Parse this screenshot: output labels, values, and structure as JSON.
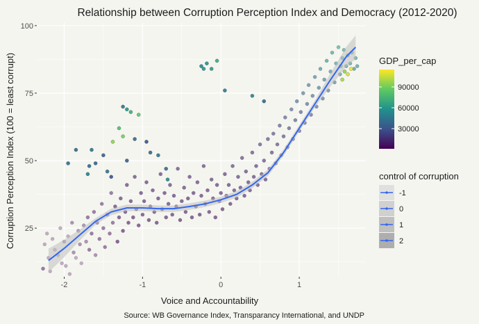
{
  "chart_data": {
    "type": "scatter",
    "title": "Relationship between Corruption Perception Index and Democracy (2012-2020)",
    "xlabel": "Voice and Accountability",
    "ylabel": "Corruption Perception Index (100 = least corrupt)",
    "caption": "Source: WB Governance Index, Transparancy International, and UNDP",
    "xlim": [
      -2.35,
      1.85
    ],
    "ylim": [
      7,
      101
    ],
    "x_ticks": [
      -2,
      -1,
      0,
      1
    ],
    "x_tick_labels": [
      "-2",
      "-1",
      "0",
      "1"
    ],
    "y_ticks": [
      25,
      50,
      75,
      100
    ],
    "y_tick_labels": [
      "25",
      "50",
      "75",
      "100"
    ],
    "grid": true,
    "smooth_line": {
      "color": "#3366ee",
      "x": [
        -2.2,
        -2.0,
        -1.8,
        -1.6,
        -1.4,
        -1.2,
        -1.0,
        -0.8,
        -0.6,
        -0.4,
        -0.2,
        0.0,
        0.2,
        0.4,
        0.6,
        0.8,
        1.0,
        1.2,
        1.4,
        1.6,
        1.72
      ],
      "y": [
        13,
        17.5,
        22.5,
        27.5,
        31,
        32.5,
        32.5,
        32.2,
        32.2,
        33,
        34,
        35.5,
        37.5,
        41,
        45.5,
        53,
        62,
        71,
        80,
        88.5,
        92
      ]
    },
    "legend_gdp": {
      "title": "GDP_per_cap",
      "ticks": [
        30000,
        60000,
        90000
      ],
      "tick_labels": [
        "30000",
        "60000",
        "90000"
      ],
      "min": 1000,
      "max": 115000,
      "colors": [
        "#440154",
        "#3b528b",
        "#21918c",
        "#5ec962",
        "#fde725"
      ]
    },
    "legend_control": {
      "title": "control of corruption",
      "items": [
        "-1",
        "0",
        "1",
        "2"
      ],
      "shades": [
        "#e0e0e0",
        "#d0d0d0",
        "#bfbfbf",
        "#aeaeae"
      ],
      "line_color": "#3366ee"
    },
    "points": [
      [
        -2.27,
        10,
        0.3,
        0.5
      ],
      [
        -2.25,
        19,
        0.4,
        0.3
      ],
      [
        -2.22,
        23,
        0.5,
        0.3
      ],
      [
        -2.2,
        14,
        0.6,
        0.3
      ],
      [
        -2.18,
        9,
        0.8,
        0.3
      ],
      [
        -2.15,
        21,
        1,
        0.3
      ],
      [
        -2.12,
        17,
        1.2,
        0.3
      ],
      [
        -2.08,
        15,
        1.3,
        0.3
      ],
      [
        -2.05,
        25,
        1.5,
        0.3
      ],
      [
        -2.03,
        12,
        1.1,
        0.3
      ],
      [
        -2.0,
        20,
        1.8,
        0.4
      ],
      [
        -1.98,
        11,
        2,
        0.3
      ],
      [
        -1.95,
        22,
        2.5,
        0.3
      ],
      [
        -1.93,
        8,
        1.7,
        0.3
      ],
      [
        -1.9,
        27,
        2.8,
        0.4
      ],
      [
        -1.88,
        16,
        2.1,
        0.4
      ],
      [
        -1.85,
        14,
        2.4,
        0.3
      ],
      [
        -1.82,
        24,
        3,
        0.4
      ],
      [
        -1.8,
        19,
        3.5,
        0.4
      ],
      [
        -1.78,
        12,
        2.8,
        0.3
      ],
      [
        -1.75,
        26,
        3.8,
        0.4
      ],
      [
        -1.72,
        20,
        3.2,
        0.4
      ],
      [
        -1.7,
        29,
        4,
        0.5
      ],
      [
        -1.68,
        17,
        3.3,
        0.5
      ],
      [
        -1.65,
        23,
        4.2,
        0.5
      ],
      [
        -1.62,
        31,
        4.8,
        0.5
      ],
      [
        -1.6,
        15,
        2.9,
        0.4
      ],
      [
        -1.58,
        27,
        5,
        0.5
      ],
      [
        -1.55,
        21,
        4.4,
        0.5
      ],
      [
        -1.52,
        34,
        6,
        0.5
      ],
      [
        -1.5,
        25,
        5.5,
        0.5
      ],
      [
        -1.48,
        18,
        3.8,
        0.5
      ],
      [
        -1.45,
        30,
        6,
        0.5
      ],
      [
        -1.42,
        23,
        4.9,
        0.5
      ],
      [
        -1.4,
        38,
        7,
        0.5
      ],
      [
        -1.38,
        27,
        5.5,
        0.5
      ],
      [
        -1.35,
        33,
        6.6,
        0.6
      ],
      [
        -1.32,
        20,
        4.2,
        0.6
      ],
      [
        -1.3,
        29,
        6.1,
        0.6
      ],
      [
        -1.28,
        36,
        8,
        0.6
      ],
      [
        -1.25,
        24,
        4.9,
        0.6
      ],
      [
        -1.22,
        31,
        6.4,
        0.6
      ],
      [
        -1.2,
        41,
        9,
        0.6
      ],
      [
        -1.18,
        27,
        6,
        0.6
      ],
      [
        -1.15,
        35,
        7,
        0.6
      ],
      [
        -1.12,
        29,
        5.5,
        0.6
      ],
      [
        -1.1,
        44,
        10,
        0.6
      ],
      [
        -1.08,
        32,
        7.2,
        0.6
      ],
      [
        -1.05,
        26,
        5.2,
        0.6
      ],
      [
        -1.02,
        38,
        8.4,
        0.6
      ],
      [
        -1.0,
        30,
        6.3,
        0.6
      ],
      [
        -0.98,
        35,
        7.1,
        0.6
      ],
      [
        -0.95,
        42,
        9.5,
        0.6
      ],
      [
        -0.92,
        28,
        5.9,
        0.6
      ],
      [
        -0.9,
        33,
        6.9,
        0.6
      ],
      [
        -0.87,
        39,
        8.8,
        0.6
      ],
      [
        -0.85,
        31,
        6.5,
        0.6
      ],
      [
        -0.82,
        27,
        5.6,
        0.6
      ],
      [
        -0.8,
        36,
        7.7,
        0.6
      ],
      [
        -0.77,
        45,
        11,
        0.6
      ],
      [
        -0.75,
        32,
        6.6,
        0.6
      ],
      [
        -0.72,
        38,
        7.9,
        0.6
      ],
      [
        -0.7,
        29,
        5.8,
        0.6
      ],
      [
        -0.67,
        34,
        7,
        0.6
      ],
      [
        -0.65,
        41,
        9.3,
        0.6
      ],
      [
        -0.62,
        30,
        6.2,
        0.6
      ],
      [
        -0.6,
        37,
        8.5,
        0.6
      ],
      [
        -0.57,
        33,
        6.8,
        0.6
      ],
      [
        -0.55,
        47,
        12,
        0.6
      ],
      [
        -0.52,
        28,
        5.7,
        0.6
      ],
      [
        -0.5,
        35,
        7.4,
        0.6
      ],
      [
        -0.47,
        40,
        9.1,
        0.6
      ],
      [
        -0.45,
        31,
        6.4,
        0.6
      ],
      [
        -0.42,
        36,
        7.6,
        0.6
      ],
      [
        -0.4,
        44,
        10.5,
        0.6
      ],
      [
        -0.37,
        29,
        5.9,
        0.6
      ],
      [
        -0.35,
        38,
        8.2,
        0.6
      ],
      [
        -0.32,
        33,
        6.9,
        0.6
      ],
      [
        -0.3,
        42,
        9.7,
        0.6
      ],
      [
        -0.27,
        30,
        6.1,
        0.6
      ],
      [
        -0.25,
        37,
        8,
        0.6
      ],
      [
        -0.22,
        48,
        12.5,
        0.6
      ],
      [
        -0.2,
        34,
        7.2,
        0.6
      ],
      [
        -0.17,
        39,
        8.6,
        0.6
      ],
      [
        -0.15,
        31,
        6.5,
        0.6
      ],
      [
        -0.12,
        43,
        10,
        0.6
      ],
      [
        -0.1,
        36,
        7.7,
        0.6
      ],
      [
        -0.07,
        29,
        5.9,
        0.6
      ],
      [
        -0.05,
        41,
        9.2,
        0.6
      ],
      [
        -0.02,
        35,
        7.5,
        0.6
      ],
      [
        0.0,
        38,
        8.3,
        0.6
      ],
      [
        0.02,
        32,
        6.7,
        0.6
      ],
      [
        0.05,
        45,
        11.2,
        0.6
      ],
      [
        0.07,
        37,
        8,
        0.6
      ],
      [
        0.1,
        41,
        9.4,
        0.6
      ],
      [
        0.12,
        34,
        7.3,
        0.6
      ],
      [
        0.15,
        48,
        13,
        0.6
      ],
      [
        0.17,
        39,
        8.8,
        0.6
      ],
      [
        0.2,
        36,
        7.8,
        0.6
      ],
      [
        0.22,
        44,
        10.7,
        0.6
      ],
      [
        0.25,
        40,
        9.1,
        0.6
      ],
      [
        0.27,
        51,
        14,
        0.6
      ],
      [
        0.3,
        37,
        8.2,
        0.6
      ],
      [
        0.32,
        46,
        11.5,
        0.6
      ],
      [
        0.35,
        42,
        10,
        0.6
      ],
      [
        0.37,
        39,
        8.9,
        0.6
      ],
      [
        0.4,
        53,
        15,
        0.6
      ],
      [
        0.42,
        44,
        10.8,
        0.6
      ],
      [
        0.45,
        48,
        12.6,
        0.6
      ],
      [
        0.47,
        41,
        9.7,
        0.6
      ],
      [
        0.5,
        56,
        17,
        0.6
      ],
      [
        0.52,
        45,
        11.3,
        0.6
      ],
      [
        0.55,
        50,
        13.5,
        0.6
      ],
      [
        0.57,
        43,
        10.4,
        0.6
      ],
      [
        0.6,
        58,
        19,
        0.6
      ],
      [
        0.62,
        47,
        12,
        0.6
      ],
      [
        0.65,
        53,
        15,
        0.6
      ],
      [
        0.67,
        60,
        20,
        0.6
      ],
      [
        0.7,
        49,
        13,
        0.6
      ],
      [
        0.72,
        56,
        17,
        0.6
      ],
      [
        0.75,
        63,
        23,
        0.6
      ],
      [
        0.77,
        52,
        14.5,
        0.6
      ],
      [
        0.8,
        59,
        19.5,
        0.6
      ],
      [
        0.82,
        66,
        26,
        0.6
      ],
      [
        0.85,
        55,
        16.5,
        0.6
      ],
      [
        0.87,
        62,
        22,
        0.6
      ],
      [
        0.9,
        69,
        30,
        0.6
      ],
      [
        0.92,
        58,
        18.8,
        0.6
      ],
      [
        0.95,
        65,
        25,
        0.6
      ],
      [
        0.97,
        72,
        34,
        0.6
      ],
      [
        1.0,
        61,
        21,
        0.6
      ],
      [
        1.02,
        68,
        28,
        0.6
      ],
      [
        1.05,
        75,
        38,
        0.6
      ],
      [
        1.07,
        64,
        24,
        0.6
      ],
      [
        1.1,
        71,
        32,
        0.6
      ],
      [
        1.12,
        78,
        42,
        0.6
      ],
      [
        1.15,
        67,
        27,
        0.6
      ],
      [
        1.17,
        74,
        36,
        0.6
      ],
      [
        1.2,
        81,
        46,
        0.6
      ],
      [
        1.22,
        70,
        31,
        0.6
      ],
      [
        1.25,
        77,
        41,
        0.6
      ],
      [
        1.27,
        84,
        50,
        0.6
      ],
      [
        1.3,
        73,
        35,
        0.6
      ],
      [
        1.32,
        80,
        45,
        0.6
      ],
      [
        1.35,
        87,
        55,
        0.6
      ],
      [
        1.37,
        76,
        39,
        0.6
      ],
      [
        1.4,
        83,
        49,
        0.6
      ],
      [
        1.42,
        90,
        60,
        0.6
      ],
      [
        1.45,
        79,
        44,
        0.6
      ],
      [
        1.47,
        86,
        54,
        0.6
      ],
      [
        1.5,
        92,
        65,
        0.6
      ],
      [
        1.52,
        82,
        48,
        0.6
      ],
      [
        1.55,
        88,
        58,
        0.6
      ],
      [
        1.57,
        91,
        62,
        0.6
      ],
      [
        1.6,
        85,
        52,
        0.6
      ],
      [
        1.62,
        89,
        60,
        0.6
      ],
      [
        1.65,
        86,
        55,
        0.6
      ],
      [
        1.67,
        90,
        63,
        0.6
      ],
      [
        1.7,
        84,
        50,
        0.6
      ],
      [
        1.72,
        88,
        57,
        0.6
      ],
      [
        1.74,
        85,
        54,
        0.6
      ],
      [
        1.55,
        80,
        100,
        0.9
      ],
      [
        1.62,
        82,
        108,
        0.9
      ],
      [
        1.66,
        84,
        112,
        0.9
      ],
      [
        1.58,
        83,
        95,
        0.9
      ],
      [
        1.53,
        85,
        90,
        0.9
      ],
      [
        -0.25,
        85,
        55,
        0.9
      ],
      [
        -0.22,
        84,
        60,
        0.9
      ],
      [
        -0.18,
        86,
        58,
        0.9
      ],
      [
        -0.12,
        84,
        62,
        0.9
      ],
      [
        -0.05,
        87,
        70,
        0.9
      ],
      [
        0.05,
        76,
        48,
        0.9
      ],
      [
        0.4,
        74,
        52,
        0.9
      ],
      [
        0.55,
        72,
        40,
        0.9
      ],
      [
        -1.25,
        70,
        45,
        0.9
      ],
      [
        -1.2,
        69,
        60,
        0.9
      ],
      [
        -1.15,
        68,
        72,
        0.9
      ],
      [
        -1.05,
        67,
        85,
        0.9
      ],
      [
        -1.3,
        62,
        80,
        0.9
      ],
      [
        -1.25,
        59,
        90,
        0.9
      ],
      [
        -1.38,
        57,
        95,
        0.9
      ],
      [
        -1.1,
        58,
        40,
        0.9
      ],
      [
        -0.95,
        57,
        30,
        0.9
      ],
      [
        -0.8,
        52,
        45,
        0.9
      ],
      [
        -1.65,
        54,
        45,
        0.9
      ],
      [
        -1.68,
        48,
        40,
        0.9
      ],
      [
        -1.7,
        45,
        50,
        0.9
      ],
      [
        -1.6,
        49,
        38,
        0.9
      ],
      [
        -1.5,
        52,
        35,
        0.9
      ],
      [
        -1.45,
        46,
        45,
        0.9
      ],
      [
        -1.4,
        44,
        30,
        0.9
      ],
      [
        -1.2,
        50,
        35,
        0.9
      ],
      [
        -0.9,
        53,
        40,
        0.9
      ],
      [
        -0.7,
        47,
        42,
        0.9
      ],
      [
        -0.68,
        43,
        55,
        0.9
      ],
      [
        -1.85,
        54,
        40,
        0.9
      ],
      [
        -1.95,
        49,
        42,
        0.9
      ]
    ]
  }
}
